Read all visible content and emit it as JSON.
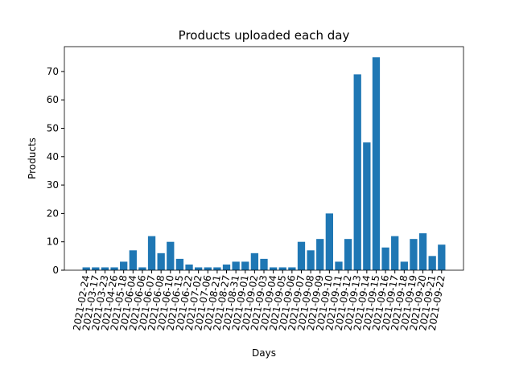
{
  "chart_data": {
    "type": "bar",
    "title": "Products uploaded each day",
    "x_label": "Days",
    "y_label": "Products",
    "categories": [
      "2021-02-24",
      "2021-03-17",
      "2021-03-23",
      "2021-04-26",
      "2021-05-18",
      "2021-06-04",
      "2021-06-06",
      "2021-06-07",
      "2021-06-08",
      "2021-06-10",
      "2021-06-15",
      "2021-06-22",
      "2021-07-02",
      "2021-07-06",
      "2021-08-21",
      "2021-08-27",
      "2021-08-31",
      "2021-09-01",
      "2021-09-02",
      "2021-09-03",
      "2021-09-04",
      "2021-09-05",
      "2021-09-06",
      "2021-09-07",
      "2021-09-08",
      "2021-09-09",
      "2021-09-10",
      "2021-09-11",
      "2021-09-12",
      "2021-09-13",
      "2021-09-14",
      "2021-09-15",
      "2021-09-16",
      "2021-09-17",
      "2021-09-18",
      "2021-09-19",
      "2021-09-20",
      "2021-09-21",
      "2021-09-22"
    ],
    "values": [
      1,
      1,
      1,
      1,
      3,
      7,
      1,
      12,
      6,
      10,
      4,
      2,
      1,
      1,
      1,
      2,
      3,
      3,
      6,
      4,
      1,
      1,
      1,
      10,
      7,
      11,
      20,
      3,
      11,
      69,
      45,
      75,
      8,
      12,
      3,
      11,
      13,
      5,
      9
    ],
    "color": "#1f77b4",
    "ylim": [
      0,
      78.75
    ],
    "yticks": [
      0,
      10,
      20,
      30,
      40,
      50,
      60,
      70
    ]
  }
}
